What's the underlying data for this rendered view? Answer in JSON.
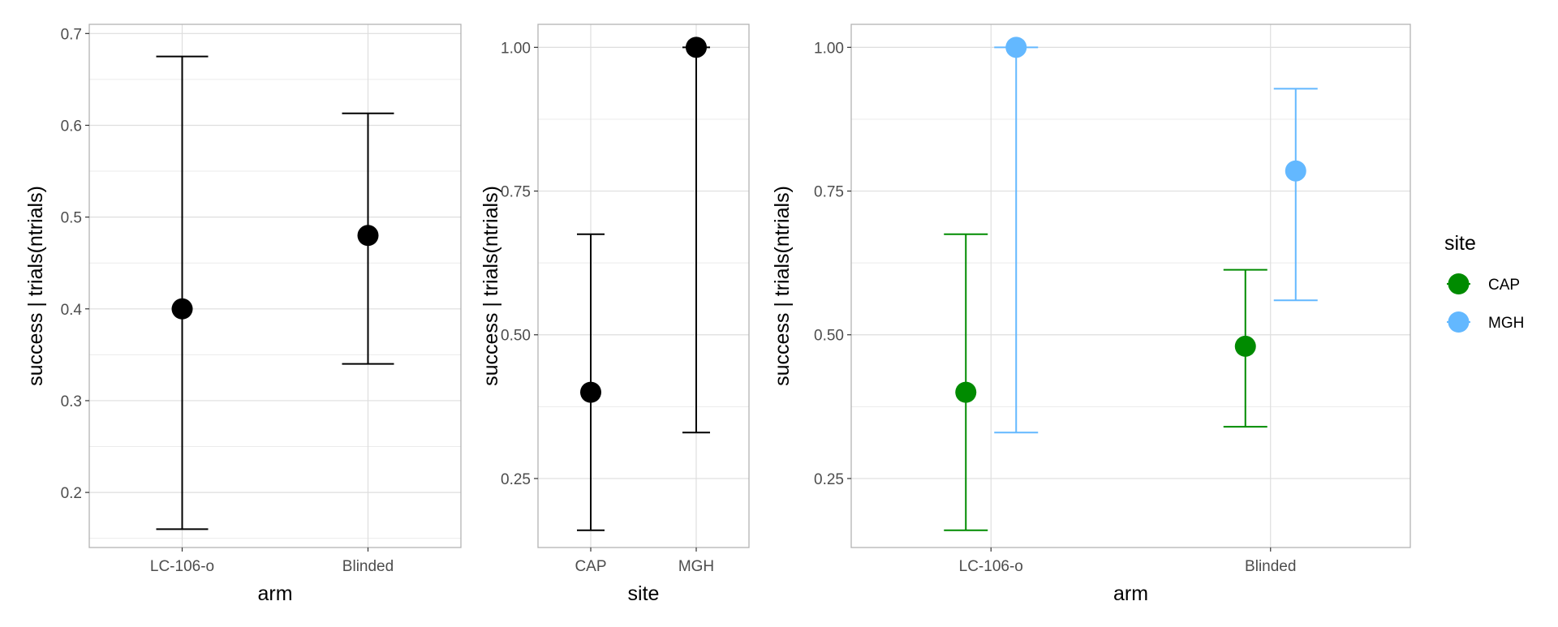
{
  "colors": {
    "black_series": "#000000",
    "CAP": "#008B00",
    "MGH": "#63B8FF",
    "grid_major": "#DEDEDE",
    "grid_minor": "#EBEBEB",
    "panel_border": "#B3B3B3"
  },
  "chart_data": [
    {
      "type": "errorbar",
      "xlabel": "arm",
      "ylabel": "success | trials(ntrials)",
      "categories": [
        "LC-106-o",
        "Blinded"
      ],
      "ylim": [
        0.14,
        0.71
      ],
      "yticks": [
        0.2,
        0.3,
        0.4,
        0.5,
        0.6,
        0.7
      ],
      "ytick_labels": [
        "0.2",
        "0.3",
        "0.4",
        "0.5",
        "0.6",
        "0.7"
      ],
      "series": [
        {
          "points": [
            {
              "x": "LC-106-o",
              "estimate": 0.4,
              "lower": 0.16,
              "upper": 0.675
            },
            {
              "x": "Blinded",
              "estimate": 0.48,
              "lower": 0.34,
              "upper": 0.613
            }
          ]
        }
      ],
      "grid": true
    },
    {
      "type": "errorbar",
      "xlabel": "site",
      "ylabel": "success | trials(ntrials)",
      "categories": [
        "CAP",
        "MGH"
      ],
      "ylim": [
        0.13,
        1.04
      ],
      "yticks": [
        0.25,
        0.5,
        0.75,
        1.0
      ],
      "ytick_labels": [
        "0.25",
        "0.50",
        "0.75",
        "1.00"
      ],
      "series": [
        {
          "points": [
            {
              "x": "CAP",
              "estimate": 0.4,
              "lower": 0.16,
              "upper": 0.675
            },
            {
              "x": "MGH",
              "estimate": 1.0,
              "lower": 0.33,
              "upper": 1.0
            }
          ]
        }
      ],
      "grid": true
    },
    {
      "type": "errorbar",
      "xlabel": "arm",
      "ylabel": "success | trials(ntrials)",
      "categories": [
        "LC-106-o",
        "Blinded"
      ],
      "ylim": [
        0.13,
        1.04
      ],
      "yticks": [
        0.25,
        0.5,
        0.75,
        1.0
      ],
      "ytick_labels": [
        "0.25",
        "0.50",
        "0.75",
        "1.00"
      ],
      "legend": {
        "title": "site",
        "position": "right",
        "entries": [
          "CAP",
          "MGH"
        ]
      },
      "series": [
        {
          "name": "CAP",
          "points": [
            {
              "x": "LC-106-o",
              "estimate": 0.4,
              "lower": 0.16,
              "upper": 0.675
            },
            {
              "x": "Blinded",
              "estimate": 0.48,
              "lower": 0.34,
              "upper": 0.613
            }
          ]
        },
        {
          "name": "MGH",
          "points": [
            {
              "x": "LC-106-o",
              "estimate": 1.0,
              "lower": 0.33,
              "upper": 1.0
            },
            {
              "x": "Blinded",
              "estimate": 0.785,
              "lower": 0.56,
              "upper": 0.928
            }
          ]
        }
      ],
      "grid": true
    }
  ]
}
